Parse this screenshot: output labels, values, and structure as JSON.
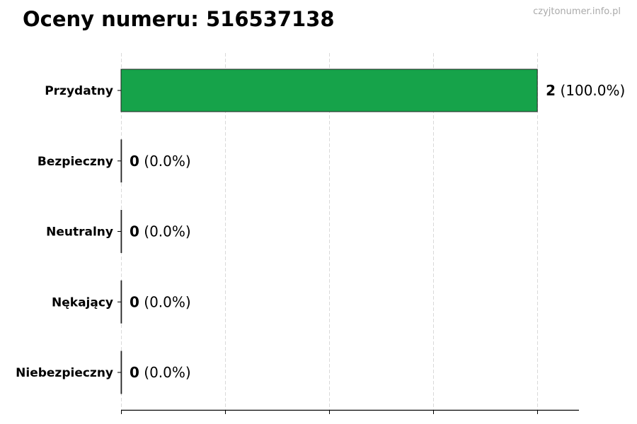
{
  "title": "Oceny numeru: 516537138",
  "watermark": "czyjtonumer.info.pl",
  "chart_data": {
    "type": "bar",
    "orientation": "horizontal",
    "title": "Oceny numeru: 516537138",
    "categories": [
      "Przydatny",
      "Bezpieczny",
      "Neutralny",
      "Nękający",
      "Niebezpieczny"
    ],
    "values": [
      2,
      0,
      0,
      0,
      0
    ],
    "percents": [
      "100.0%",
      "0.0%",
      "0.0%",
      "0.0%",
      "0.0%"
    ],
    "colors": [
      "#16a34a",
      "#16a34a",
      "#16a34a",
      "#16a34a",
      "#16a34a"
    ],
    "xlim": [
      0,
      2.2
    ],
    "xticks": [
      0,
      0.5,
      1,
      1.5,
      2
    ],
    "xtick_labels_shown": false,
    "grid": "vertical dashed",
    "xlabel": "",
    "ylabel": ""
  }
}
